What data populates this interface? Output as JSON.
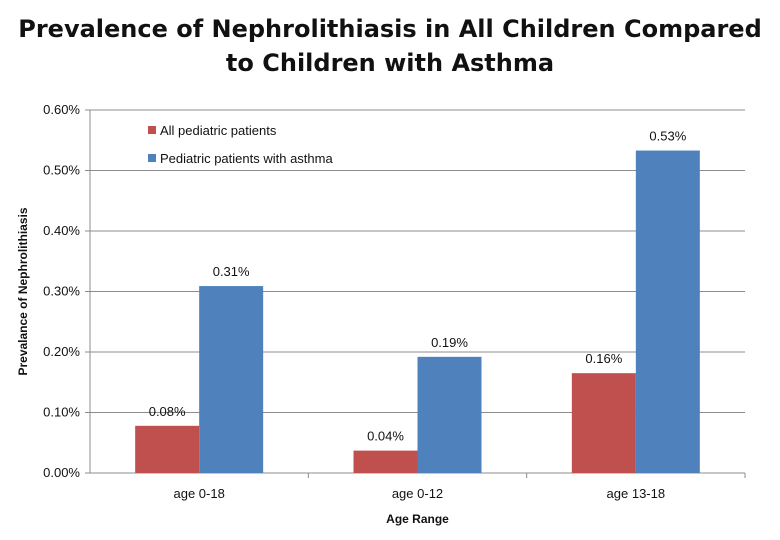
{
  "chart_data": {
    "type": "bar",
    "title_line1": "Prevalence of Nephrolithiasis in All Children Compared",
    "title_line2": "to Children with Asthma",
    "xlabel": "Age Range",
    "ylabel": "Prevalance of Nephrolithiasis",
    "categories": [
      "age 0-18",
      "age 0-12",
      "age 13-18"
    ],
    "ylim": [
      0,
      0.6
    ],
    "yticks": [
      "0.00%",
      "0.10%",
      "0.20%",
      "0.30%",
      "0.40%",
      "0.50%",
      "0.60%"
    ],
    "grid": true,
    "legend_position": "top-left",
    "series": [
      {
        "name": "All pediatric patients",
        "color": "#c0504d",
        "values": [
          0.078,
          0.037,
          0.165
        ],
        "labels": [
          "0.08%",
          "0.04%",
          "0.16%"
        ]
      },
      {
        "name": "Pediatric patients with asthma",
        "color": "#4f81bd",
        "values": [
          0.309,
          0.192,
          0.533
        ],
        "labels": [
          "0.31%",
          "0.19%",
          "0.53%"
        ]
      }
    ]
  }
}
